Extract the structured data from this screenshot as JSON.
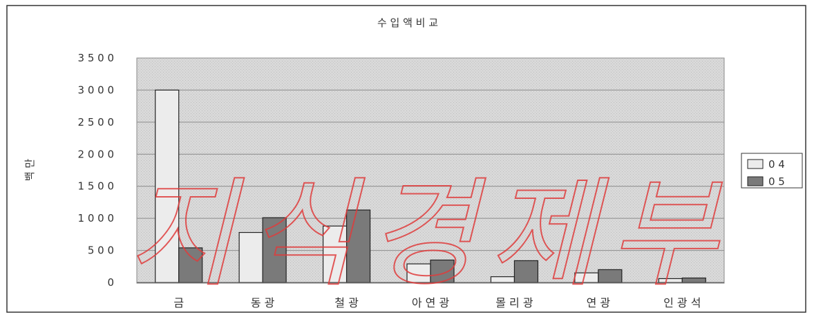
{
  "chart_data": {
    "type": "bar",
    "title": "수 입 액  비 교",
    "ylabel": "백 만",
    "xlabel": "",
    "categories": [
      "금",
      "동 광",
      "철 광",
      "아 연 광",
      "몰 리 광",
      "연 광",
      "인 광 석"
    ],
    "series": [
      {
        "name": "0 4",
        "values": [
          3000,
          780,
          880,
          290,
          90,
          150,
          60
        ],
        "color": "#ececec"
      },
      {
        "name": "0 5",
        "values": [
          540,
          1010,
          1130,
          350,
          340,
          200,
          70
        ],
        "color": "#7a7a7a"
      }
    ],
    "ylim": [
      0,
      3500
    ],
    "yticks": [
      0,
      500,
      1000,
      1500,
      2000,
      2500,
      3000,
      3500
    ],
    "ytick_labels": [
      "0",
      "5 0 0",
      "1 0 0 0",
      "1 5 0 0",
      "2 0 0 0",
      "2 5 0 0",
      "3 0 0 0",
      "3 5 0 0"
    ],
    "grid": true,
    "legend_position": "right",
    "watermark": "지식경제부",
    "colors": {
      "plot_bg": "#d6d6d6",
      "frame": "#333333",
      "watermark": "#e03c3c"
    }
  }
}
